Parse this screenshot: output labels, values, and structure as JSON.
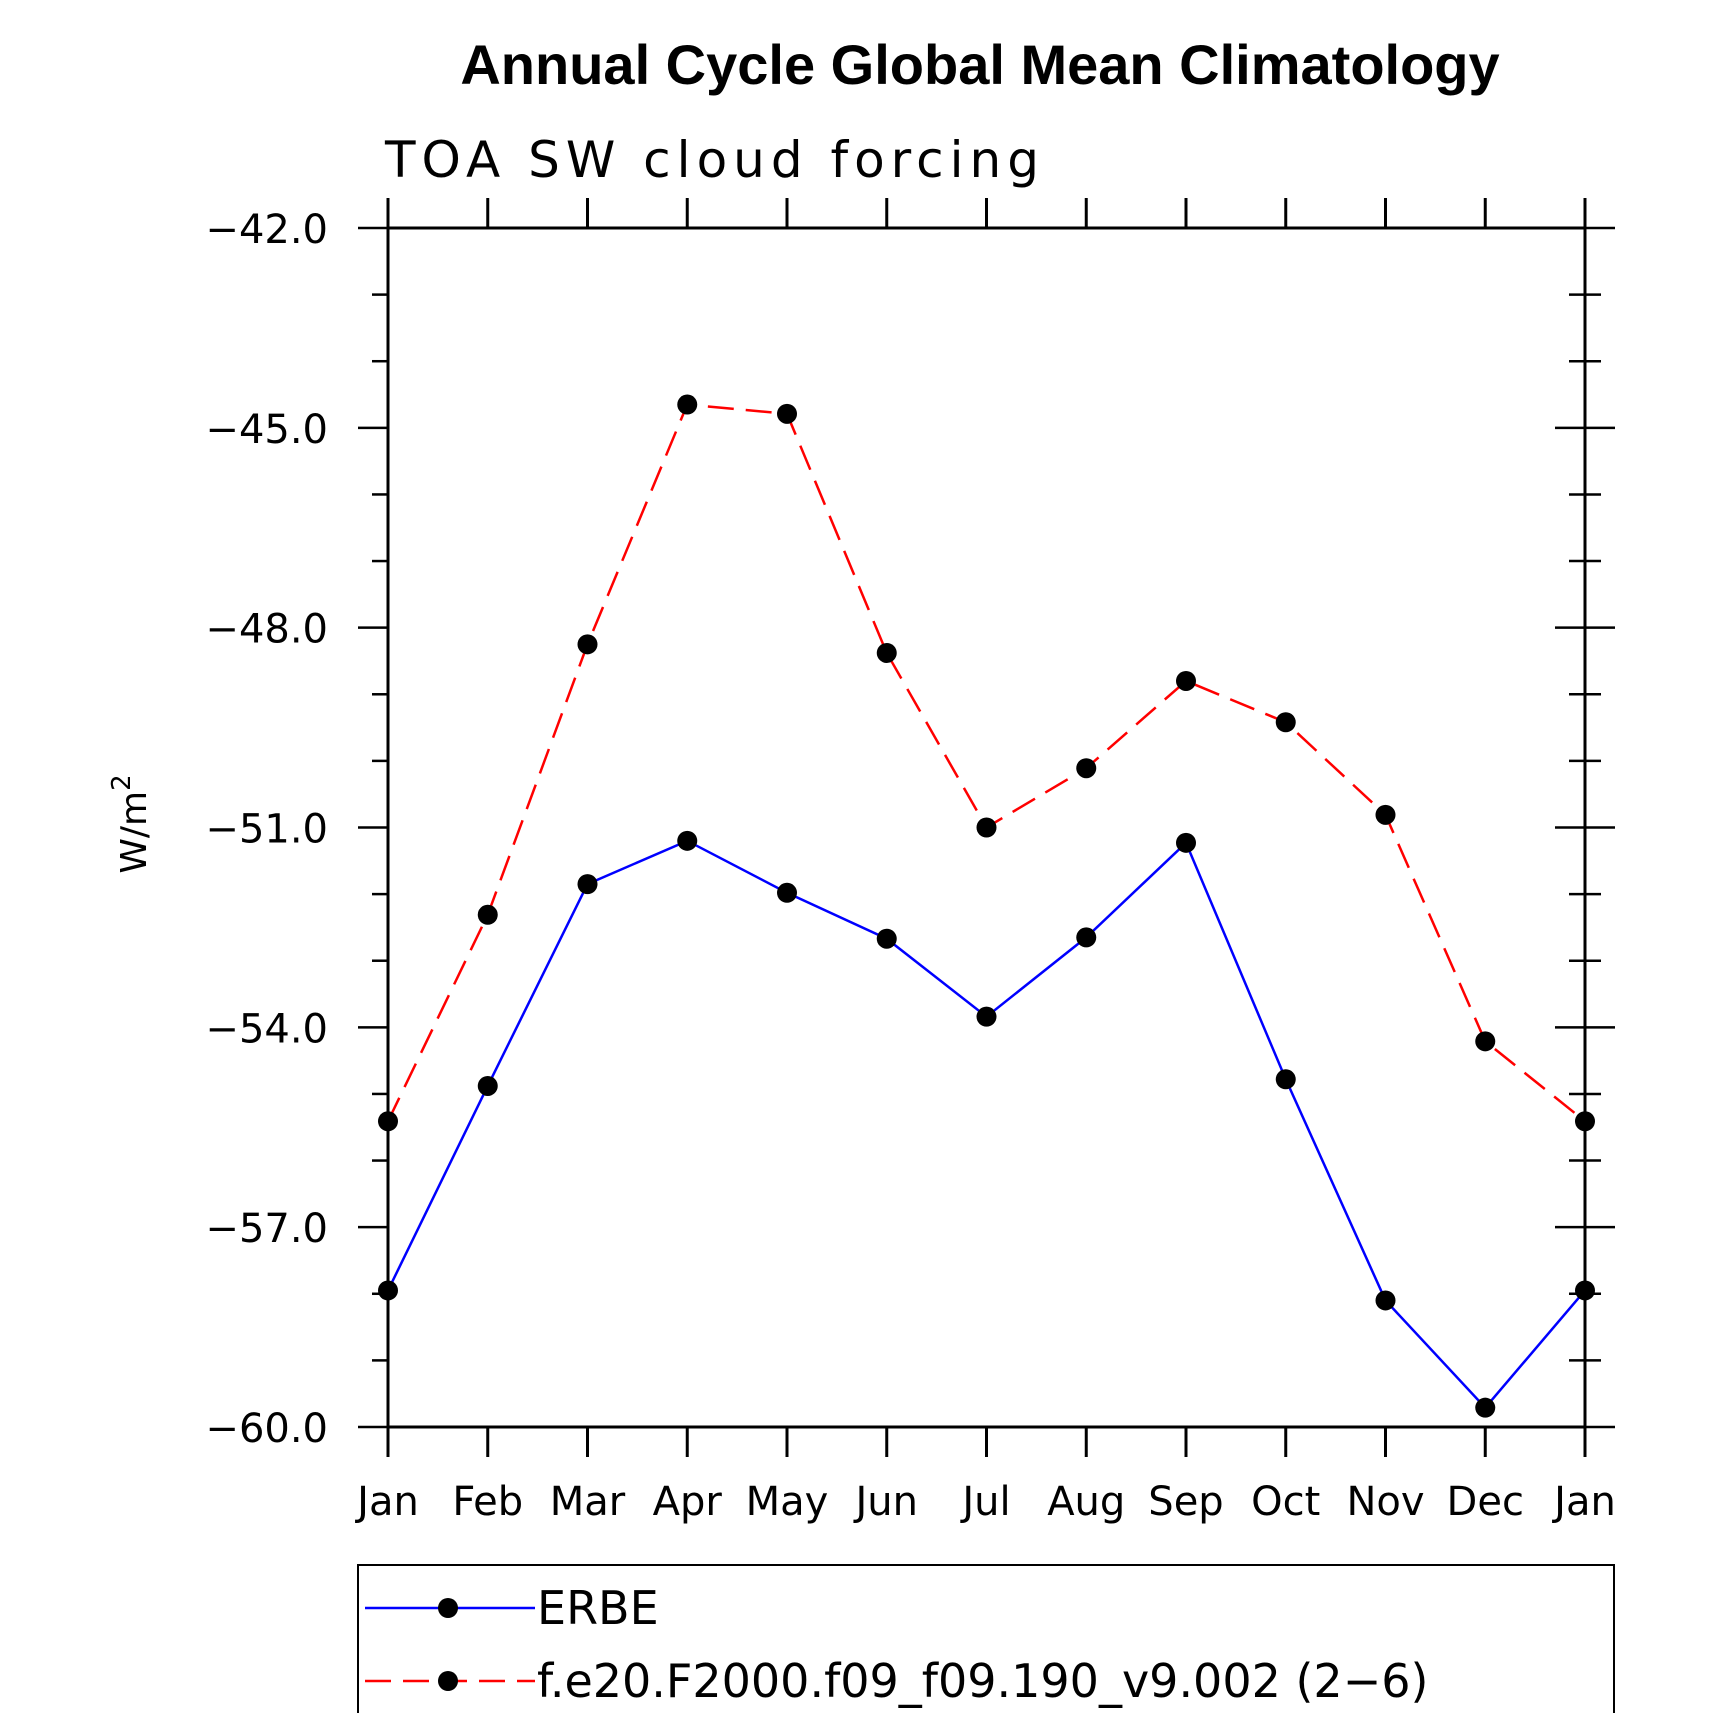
{
  "chart_data": {
    "type": "line",
    "title": "Annual Cycle Global Mean Climatology",
    "subtitle": "TOA SW cloud forcing",
    "ylabel_main": "W/m",
    "ylabel_sup": "2",
    "ylim": [
      -60.0,
      -42.0
    ],
    "yticks": [
      -42.0,
      -45.0,
      -48.0,
      -51.0,
      -54.0,
      -57.0,
      -60.0
    ],
    "ytick_labels": [
      "−42.0",
      "−45.0",
      "−48.0",
      "−51.0",
      "−54.0",
      "−57.0",
      "−60.0"
    ],
    "categories": [
      "Jan",
      "Feb",
      "Mar",
      "Apr",
      "May",
      "Jun",
      "Jul",
      "Aug",
      "Sep",
      "Oct",
      "Nov",
      "Dec",
      "Jan"
    ],
    "grid": false,
    "legend_position": "bottom",
    "series": [
      {
        "name": "ERBE",
        "color": "#0000ff",
        "line_style": "solid",
        "values": [
          -57.95,
          -54.88,
          -51.85,
          -51.2,
          -51.98,
          -52.67,
          -53.84,
          -52.65,
          -51.23,
          -54.78,
          -58.1,
          -59.71,
          -57.95
        ]
      },
      {
        "name": "f.e20.F2000.f09_f09.190_v9.002 (2−6)",
        "color": "#ff0000",
        "line_style": "dashed",
        "values": [
          -55.41,
          -52.31,
          -48.25,
          -44.65,
          -44.79,
          -48.38,
          -51.0,
          -50.11,
          -48.8,
          -49.42,
          -50.81,
          -54.21,
          -55.41
        ]
      }
    ],
    "marker_color": "#000000"
  }
}
